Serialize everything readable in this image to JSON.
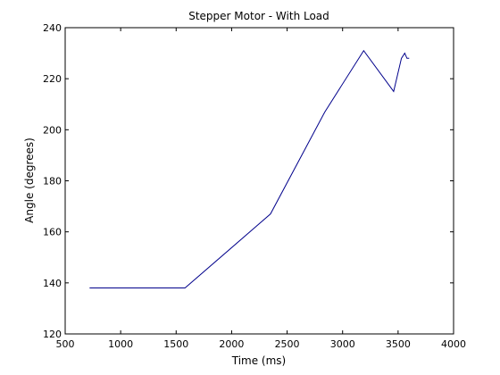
{
  "chart_data": {
    "type": "line",
    "title": "Stepper Motor - With Load",
    "xlabel": "Time (ms)",
    "ylabel": "Angle (degrees)",
    "xlim": [
      500,
      4000
    ],
    "ylim": [
      120,
      240
    ],
    "xticks": [
      500,
      1000,
      1500,
      2000,
      2500,
      3000,
      3500,
      4000
    ],
    "yticks": [
      120,
      140,
      160,
      180,
      200,
      220,
      240
    ],
    "grid": false,
    "series": [
      {
        "color": "#00008b",
        "x": [
          720,
          1580,
          2350,
          2840,
          3190,
          3460,
          3530,
          3560,
          3580,
          3600
        ],
        "y": [
          138,
          138,
          167,
          207,
          231,
          215,
          228,
          230,
          228,
          228
        ]
      }
    ]
  }
}
